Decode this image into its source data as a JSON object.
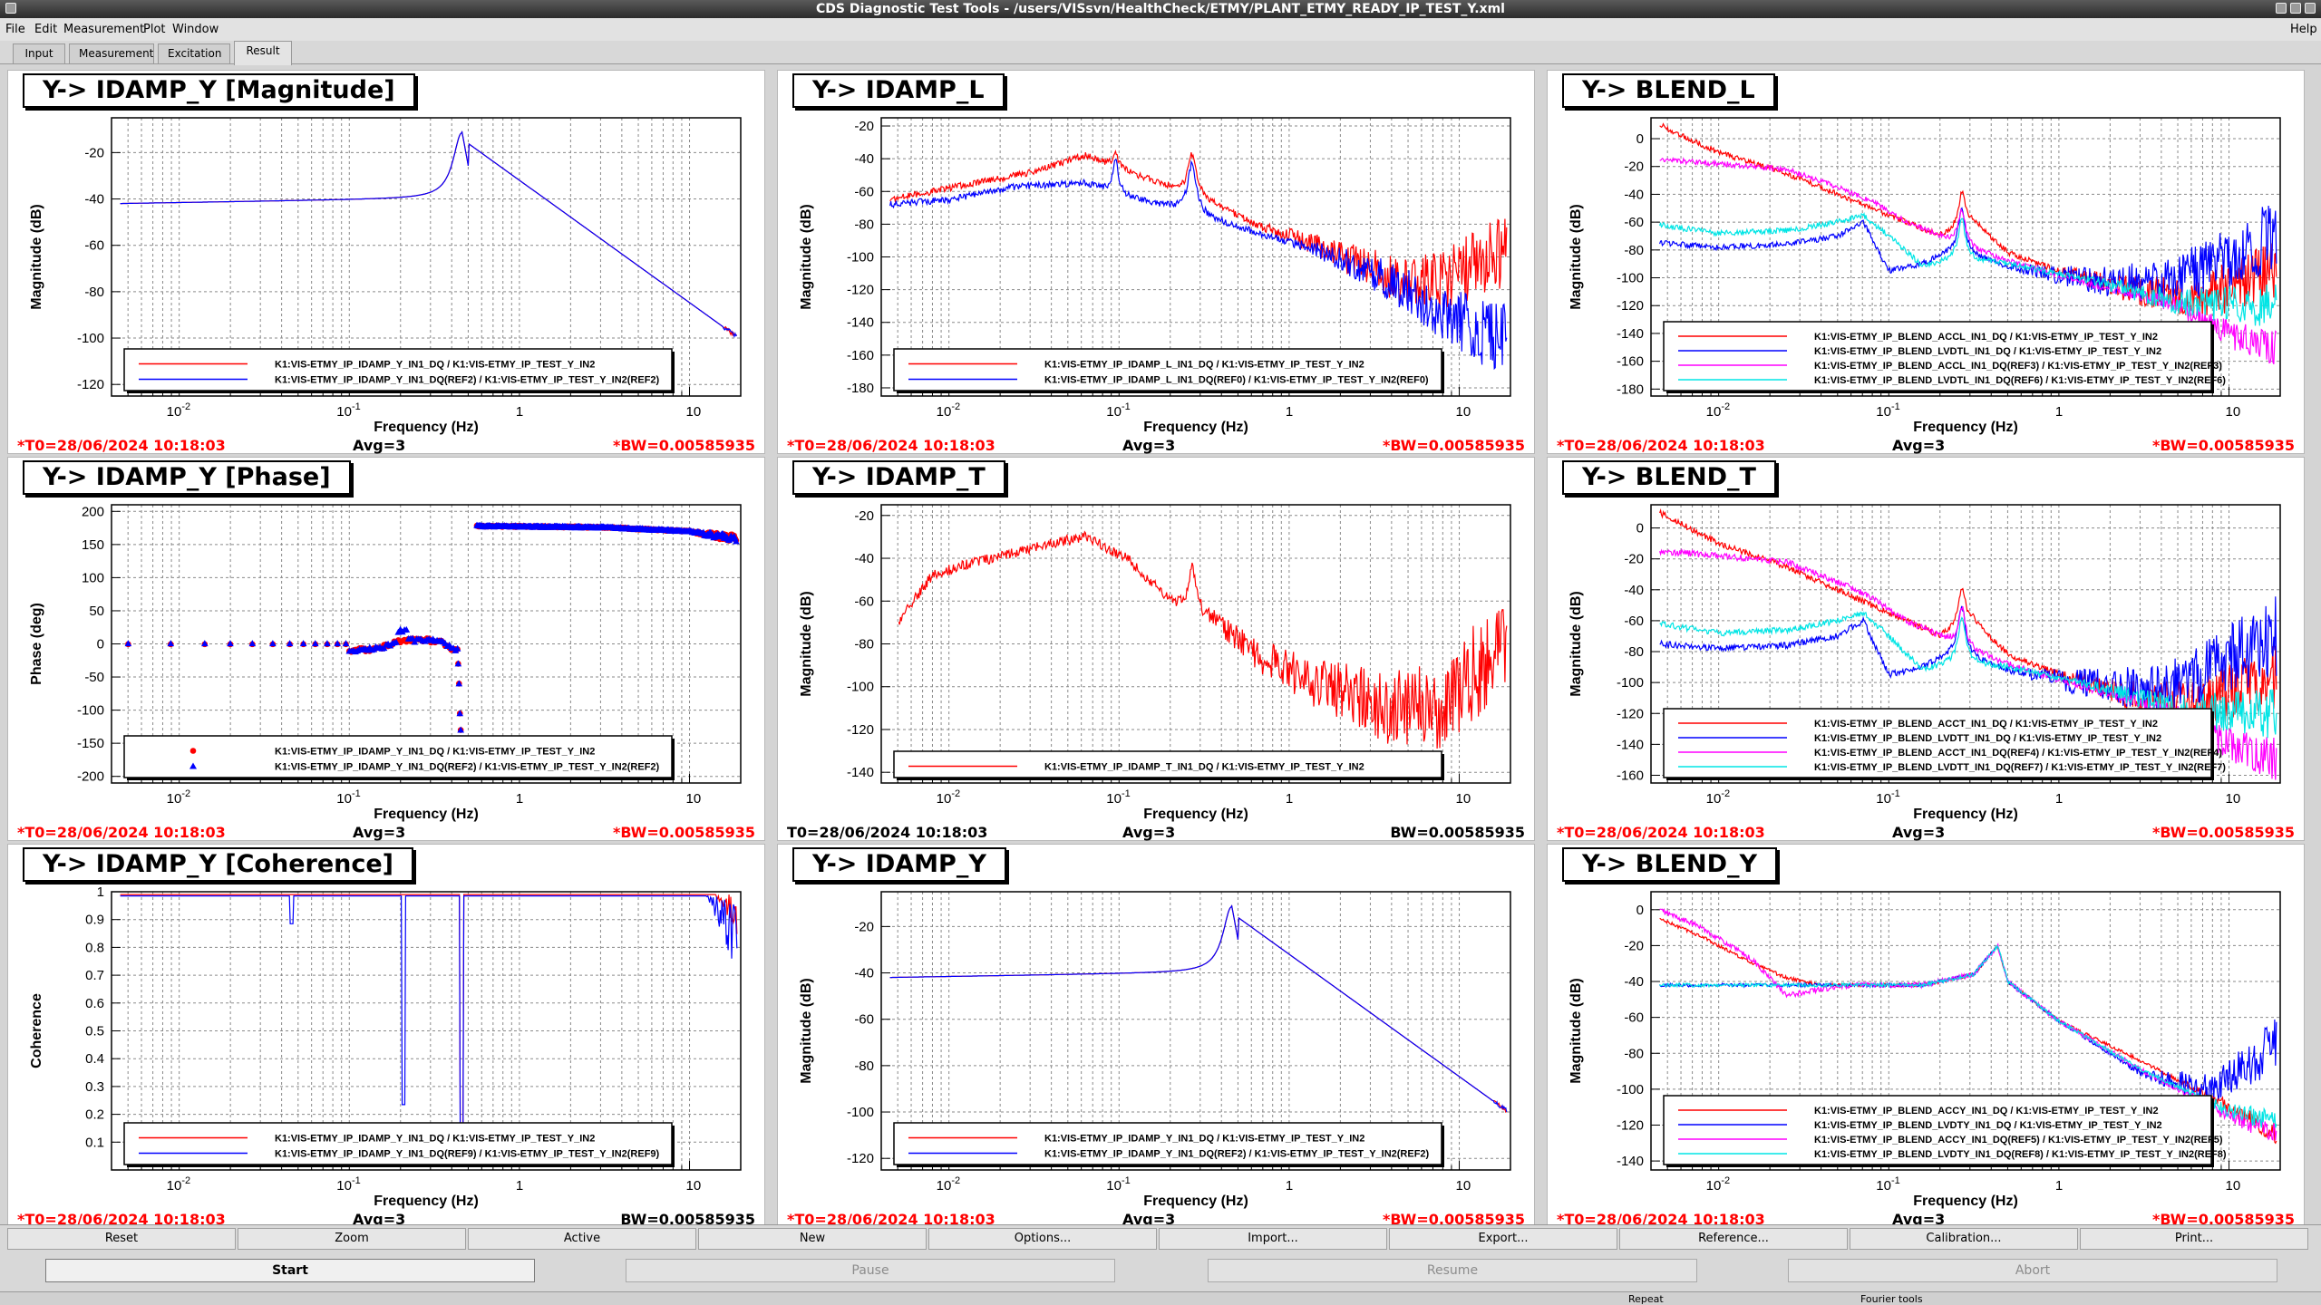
{
  "window": {
    "title": "CDS Diagnostic Test Tools - /users/VISsvn/HealthCheck/ETMY/PLANT_ETMY_READY_IP_TEST_Y.xml"
  },
  "menu": {
    "file": "File",
    "edit": "Edit",
    "measurement": "Measurement",
    "plot": "Plot",
    "window": "Window",
    "help": "Help"
  },
  "tabs": [
    {
      "label": "Input"
    },
    {
      "label": "Measurement"
    },
    {
      "label": "Excitation"
    },
    {
      "label": "Result"
    }
  ],
  "colors": {
    "red": "#ff0000",
    "blue": "#0000ff",
    "magenta": "#ff00ff",
    "cyan": "#00e5e5"
  },
  "panels": [
    {
      "title": "Y-> IDAMP_Y [Magnitude]",
      "t0": "*T0=28/06/2024 10:18:03",
      "avg": "Avg=3",
      "bw": "*BW=0.00585935",
      "t0_red": true,
      "bw_red": true,
      "chart_data": {
        "type": "line",
        "xlabel": "Frequency (Hz)",
        "ylabel": "Magnitude (dB)",
        "xscale": "log",
        "xlim": [
          0.004,
          20
        ],
        "ylim": [
          -125,
          -5
        ],
        "xticks": [
          "10^-2",
          "10^-1",
          "1",
          "10"
        ],
        "yticks": [
          -120,
          -100,
          -80,
          -60,
          -40,
          -20
        ],
        "legend": "bottom",
        "series": [
          {
            "name": "K1:VIS-ETMY_IP_IDAMP_Y_IN1_DQ / K1:VIS-ETMY_IP_TEST_Y_IN2",
            "color": "red",
            "shape": "idampY"
          },
          {
            "name": "K1:VIS-ETMY_IP_IDAMP_Y_IN1_DQ(REF2) / K1:VIS-ETMY_IP_TEST_Y_IN2(REF2)",
            "color": "blue",
            "shape": "idampY"
          }
        ]
      }
    },
    {
      "title": "Y-> IDAMP_L",
      "t0": "*T0=28/06/2024 10:18:03",
      "avg": "Avg=3",
      "bw": "*BW=0.00585935",
      "t0_red": true,
      "bw_red": true,
      "chart_data": {
        "type": "line",
        "xlabel": "Frequency (Hz)",
        "ylabel": "Magnitude (dB)",
        "xscale": "log",
        "xlim": [
          0.004,
          20
        ],
        "ylim": [
          -185,
          -15
        ],
        "xticks": [
          "10^-2",
          "10^-1",
          "1",
          "10"
        ],
        "yticks": [
          -180,
          -160,
          -140,
          -120,
          -100,
          -80,
          -60,
          -40,
          -20
        ],
        "legend": "bottom",
        "series": [
          {
            "name": "K1:VIS-ETMY_IP_IDAMP_L_IN1_DQ / K1:VIS-ETMY_IP_TEST_Y_IN2",
            "color": "red",
            "shape": "idampL_red"
          },
          {
            "name": "K1:VIS-ETMY_IP_IDAMP_L_IN1_DQ(REF0) / K1:VIS-ETMY_IP_TEST_Y_IN2(REF0)",
            "color": "blue",
            "shape": "idampL_blue"
          }
        ]
      }
    },
    {
      "title": "Y-> BLEND_L",
      "t0": "*T0=28/06/2024 10:18:03",
      "avg": "Avg=3",
      "bw": "*BW=0.00585935",
      "t0_red": true,
      "bw_red": true,
      "chart_data": {
        "type": "line",
        "xlabel": "Frequency (Hz)",
        "ylabel": "Magnitude (dB)",
        "xscale": "log",
        "xlim": [
          0.004,
          20
        ],
        "ylim": [
          -185,
          15
        ],
        "xticks": [
          "10^-2",
          "10^-1",
          "1",
          "10"
        ],
        "yticks": [
          -180,
          -160,
          -140,
          -120,
          -100,
          -80,
          -60,
          -40,
          -20,
          0
        ],
        "legend": "bottom",
        "series": [
          {
            "name": "K1:VIS-ETMY_IP_BLEND_ACCL_IN1_DQ / K1:VIS-ETMY_IP_TEST_Y_IN2",
            "color": "red",
            "shape": "acc"
          },
          {
            "name": "K1:VIS-ETMY_IP_BLEND_LVDTL_IN1_DQ / K1:VIS-ETMY_IP_TEST_Y_IN2",
            "color": "blue",
            "shape": "lvdt"
          },
          {
            "name": "K1:VIS-ETMY_IP_BLEND_ACCL_IN1_DQ(REF3) / K1:VIS-ETMY_IP_TEST_Y_IN2(REF3)",
            "color": "magenta",
            "shape": "accref"
          },
          {
            "name": "K1:VIS-ETMY_IP_BLEND_LVDTL_IN1_DQ(REF6) / K1:VIS-ETMY_IP_TEST_Y_IN2(REF6)",
            "color": "cyan",
            "shape": "lvdtref"
          }
        ]
      }
    },
    {
      "title": "Y-> IDAMP_Y [Phase]",
      "t0": "*T0=28/06/2024 10:18:03",
      "avg": "Avg=3",
      "bw": "*BW=0.00585935",
      "t0_red": true,
      "bw_red": true,
      "chart_data": {
        "type": "scatter",
        "xlabel": "Frequency (Hz)",
        "ylabel": "Phase (deg)",
        "xscale": "log",
        "xlim": [
          0.004,
          20
        ],
        "ylim": [
          -210,
          210
        ],
        "xticks": [
          "10^-2",
          "10^-1",
          "1",
          "10"
        ],
        "yticks": [
          -200,
          -150,
          -100,
          -50,
          0,
          50,
          100,
          150,
          200
        ],
        "legend": "bottom",
        "series": [
          {
            "name": "K1:VIS-ETMY_IP_IDAMP_Y_IN1_DQ / K1:VIS-ETMY_IP_TEST_Y_IN2",
            "color": "red",
            "shape": "phase",
            "marker": "circle"
          },
          {
            "name": "K1:VIS-ETMY_IP_IDAMP_Y_IN1_DQ(REF2) / K1:VIS-ETMY_IP_TEST_Y_IN2(REF2)",
            "color": "blue",
            "shape": "phase",
            "marker": "triangle"
          }
        ]
      }
    },
    {
      "title": "Y-> IDAMP_T",
      "t0": "T0=28/06/2024 10:18:03",
      "avg": "Avg=3",
      "bw": "BW=0.00585935",
      "t0_red": false,
      "bw_red": false,
      "chart_data": {
        "type": "line",
        "xlabel": "Frequency (Hz)",
        "ylabel": "Magnitude (dB)",
        "xscale": "log",
        "xlim": [
          0.004,
          20
        ],
        "ylim": [
          -145,
          -15
        ],
        "xticks": [
          "10^-2",
          "10^-1",
          "1",
          "10"
        ],
        "yticks": [
          -140,
          -120,
          -100,
          -80,
          -60,
          -40,
          -20
        ],
        "legend": "bottom",
        "series": [
          {
            "name": "K1:VIS-ETMY_IP_IDAMP_T_IN1_DQ / K1:VIS-ETMY_IP_TEST_Y_IN2",
            "color": "red",
            "shape": "idampT"
          }
        ]
      }
    },
    {
      "title": "Y-> BLEND_T",
      "t0": "*T0=28/06/2024 10:18:03",
      "avg": "Avg=3",
      "bw": "*BW=0.00585935",
      "t0_red": true,
      "bw_red": true,
      "chart_data": {
        "type": "line",
        "xlabel": "Frequency (Hz)",
        "ylabel": "Magnitude (dB)",
        "xscale": "log",
        "xlim": [
          0.004,
          20
        ],
        "ylim": [
          -165,
          15
        ],
        "xticks": [
          "10^-2",
          "10^-1",
          "1",
          "10"
        ],
        "yticks": [
          -160,
          -140,
          -120,
          -100,
          -80,
          -60,
          -40,
          -20,
          0
        ],
        "legend": "bottom",
        "series": [
          {
            "name": "K1:VIS-ETMY_IP_BLEND_ACCT_IN1_DQ / K1:VIS-ETMY_IP_TEST_Y_IN2",
            "color": "red",
            "shape": "acc"
          },
          {
            "name": "K1:VIS-ETMY_IP_BLEND_LVDTT_IN1_DQ / K1:VIS-ETMY_IP_TEST_Y_IN2",
            "color": "blue",
            "shape": "lvdt"
          },
          {
            "name": "K1:VIS-ETMY_IP_BLEND_ACCT_IN1_DQ(REF4) / K1:VIS-ETMY_IP_TEST_Y_IN2(REF4)",
            "color": "magenta",
            "shape": "accref"
          },
          {
            "name": "K1:VIS-ETMY_IP_BLEND_LVDTT_IN1_DQ(REF7) / K1:VIS-ETMY_IP_TEST_Y_IN2(REF7)",
            "color": "cyan",
            "shape": "lvdtref"
          }
        ]
      }
    },
    {
      "title": "Y-> IDAMP_Y [Coherence]",
      "t0": "*T0=28/06/2024 10:18:03",
      "avg": "Avg=3",
      "bw": "BW=0.00585935",
      "t0_red": true,
      "bw_red": false,
      "chart_data": {
        "type": "line",
        "xlabel": "Frequency (Hz)",
        "ylabel": "Coherence",
        "xscale": "log",
        "xlim": [
          0.004,
          20
        ],
        "ylim": [
          0,
          1
        ],
        "xticks": [
          "10^-2",
          "10^-1",
          "1",
          "10"
        ],
        "yticks": [
          0.1,
          0.2,
          0.3,
          0.4,
          0.5,
          0.6,
          0.7,
          0.8,
          0.9,
          1
        ],
        "legend": "bottom",
        "series": [
          {
            "name": "K1:VIS-ETMY_IP_IDAMP_Y_IN1_DQ / K1:VIS-ETMY_IP_TEST_Y_IN2",
            "color": "red",
            "shape": "coh_red"
          },
          {
            "name": "K1:VIS-ETMY_IP_IDAMP_Y_IN1_DQ(REF9) / K1:VIS-ETMY_IP_TEST_Y_IN2(REF9)",
            "color": "blue",
            "shape": "coh_blue"
          }
        ]
      }
    },
    {
      "title": "Y-> IDAMP_Y",
      "t0": "*T0=28/06/2024 10:18:03",
      "avg": "Avg=3",
      "bw": "*BW=0.00585935",
      "t0_red": true,
      "bw_red": true,
      "chart_data": {
        "type": "line",
        "xlabel": "Frequency (Hz)",
        "ylabel": "Magnitude (dB)",
        "xscale": "log",
        "xlim": [
          0.004,
          20
        ],
        "ylim": [
          -125,
          -5
        ],
        "xticks": [
          "10^-2",
          "10^-1",
          "1",
          "10"
        ],
        "yticks": [
          -120,
          -100,
          -80,
          -60,
          -40,
          -20
        ],
        "legend": "bottom",
        "series": [
          {
            "name": "K1:VIS-ETMY_IP_IDAMP_Y_IN1_DQ / K1:VIS-ETMY_IP_TEST_Y_IN2",
            "color": "red",
            "shape": "idampY"
          },
          {
            "name": "K1:VIS-ETMY_IP_IDAMP_Y_IN1_DQ(REF2) / K1:VIS-ETMY_IP_TEST_Y_IN2(REF2)",
            "color": "blue",
            "shape": "idampY"
          }
        ]
      }
    },
    {
      "title": "Y-> BLEND_Y",
      "t0": "*T0=28/06/2024 10:18:03",
      "avg": "Avg=3",
      "bw": "*BW=0.00585935",
      "t0_red": true,
      "bw_red": true,
      "chart_data": {
        "type": "line",
        "xlabel": "Frequency (Hz)",
        "ylabel": "Magnitude (dB)",
        "xscale": "log",
        "xlim": [
          0.004,
          20
        ],
        "ylim": [
          -145,
          10
        ],
        "xticks": [
          "10^-2",
          "10^-1",
          "1",
          "10"
        ],
        "yticks": [
          -140,
          -120,
          -100,
          -80,
          -60,
          -40,
          -20,
          0
        ],
        "legend": "bottom",
        "series": [
          {
            "name": "K1:VIS-ETMY_IP_BLEND_ACCY_IN1_DQ / K1:VIS-ETMY_IP_TEST_Y_IN2",
            "color": "red",
            "shape": "blendY_acc"
          },
          {
            "name": "K1:VIS-ETMY_IP_BLEND_LVDTY_IN1_DQ / K1:VIS-ETMY_IP_TEST_Y_IN2",
            "color": "blue",
            "shape": "blendY_lvdt"
          },
          {
            "name": "K1:VIS-ETMY_IP_BLEND_ACCY_IN1_DQ(REF5) / K1:VIS-ETMY_IP_TEST_Y_IN2(REF5)",
            "color": "magenta",
            "shape": "blendY_accref"
          },
          {
            "name": "K1:VIS-ETMY_IP_BLEND_LVDTY_IN1_DQ(REF8) / K1:VIS-ETMY_IP_TEST_Y_IN2(REF8)",
            "color": "cyan",
            "shape": "blendY_lvdtref"
          }
        ]
      }
    }
  ],
  "toolbar": {
    "reset": "Reset",
    "zoom": "Zoom",
    "active": "Active",
    "new": "New",
    "options": "Options...",
    "import": "Import...",
    "export": "Export...",
    "reference": "Reference...",
    "calibration": "Calibration...",
    "print": "Print..."
  },
  "controls": {
    "start": "Start",
    "pause": "Pause",
    "resume": "Resume",
    "abort": "Abort"
  },
  "status": {
    "repeat": "Repeat",
    "fourier": "Fourier tools"
  }
}
